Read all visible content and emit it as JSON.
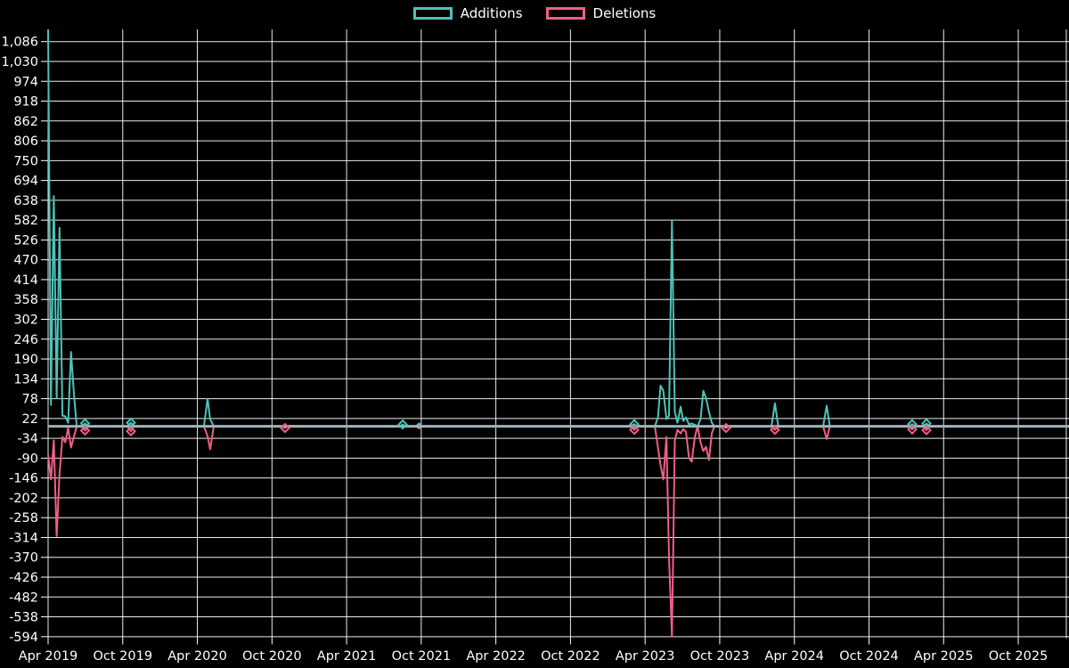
{
  "legend": {
    "additions": "Additions",
    "deletions": "Deletions"
  },
  "colors": {
    "background": "#000000",
    "additions": "#4cc3b9",
    "deletions": "#f25f84",
    "baseline": "#9eb3bc",
    "grid": "#ffffff",
    "label": "#ffffff"
  },
  "chart_data": {
    "type": "line",
    "title": "",
    "xlabel": "",
    "ylabel": "",
    "legend_position": "top-center",
    "grid": true,
    "x_axis": {
      "labels": [
        "Apr 2019",
        "Oct 2019",
        "Apr 2020",
        "Oct 2020",
        "Apr 2021",
        "Oct 2021",
        "Apr 2022",
        "Oct 2022",
        "Apr 2023",
        "Oct 2023",
        "Apr 2024",
        "Oct 2024",
        "Apr 2025",
        "Oct 2025"
      ],
      "months_between_ticks": 6
    },
    "y_axis": {
      "tick_labels": [
        "1,086",
        "1,030",
        "974",
        "918",
        "862",
        "806",
        "750",
        "694",
        "638",
        "582",
        "526",
        "470",
        "414",
        "358",
        "302",
        "246",
        "190",
        "134",
        "78",
        "22",
        "-34",
        "-90",
        "-146",
        "-202",
        "-258",
        "-314",
        "-370",
        "-426",
        "-482",
        "-538",
        "-594"
      ],
      "tick_values": [
        1086,
        1030,
        974,
        918,
        862,
        806,
        750,
        694,
        638,
        582,
        526,
        470,
        414,
        358,
        302,
        246,
        190,
        134,
        78,
        22,
        -34,
        -90,
        -146,
        -202,
        -258,
        -314,
        -370,
        -426,
        -482,
        -538,
        -594
      ],
      "step": 56,
      "range": [
        -600,
        1120
      ]
    },
    "series_meta": [
      {
        "key": "a",
        "name": "Additions",
        "color": "#4cc3b9"
      },
      {
        "key": "d",
        "name": "Deletions",
        "color": "#f25f84"
      }
    ],
    "x_unit": "months since Apr 2019 (weekly samples)",
    "points": [
      [
        0,
        1120,
        -80
      ],
      [
        0.23,
        60,
        -150
      ],
      [
        0.46,
        650,
        -40
      ],
      [
        0.69,
        80,
        -310
      ],
      [
        0.92,
        560,
        -135
      ],
      [
        1.15,
        30,
        -30
      ],
      [
        1.38,
        28,
        -45
      ],
      [
        1.61,
        10,
        -5
      ],
      [
        1.84,
        210,
        -60
      ],
      [
        2.07,
        95,
        -30
      ],
      [
        2.3,
        0,
        0
      ],
      [
        2.72,
        0,
        0
      ],
      [
        2.97,
        8,
        -12
      ],
      [
        3.22,
        0,
        0
      ],
      [
        6.37,
        0,
        0
      ],
      [
        6.66,
        10,
        -14
      ],
      [
        6.88,
        0,
        0
      ],
      [
        12.53,
        0,
        0
      ],
      [
        12.82,
        78,
        -28
      ],
      [
        13.03,
        20,
        -65
      ],
      [
        13.32,
        0,
        0
      ],
      [
        18.84,
        0,
        0
      ],
      [
        19.05,
        3,
        -5
      ],
      [
        19.27,
        0,
        0
      ],
      [
        28.29,
        0,
        0
      ],
      [
        28.51,
        5,
        0
      ],
      [
        28.72,
        0,
        0
      ],
      [
        29.58,
        0,
        0
      ],
      [
        29.83,
        8,
        -6
      ],
      [
        30.08,
        0,
        0
      ],
      [
        46.84,
        0,
        0
      ],
      [
        47.13,
        6,
        -10
      ],
      [
        47.34,
        0,
        0
      ],
      [
        48.78,
        0,
        0
      ],
      [
        49.03,
        25,
        -60
      ],
      [
        49.24,
        115,
        -110
      ],
      [
        49.46,
        100,
        -150
      ],
      [
        49.71,
        20,
        -30
      ],
      [
        49.92,
        30,
        -370
      ],
      [
        50.16,
        580,
        -594
      ],
      [
        50.39,
        40,
        -40
      ],
      [
        50.6,
        10,
        -10
      ],
      [
        50.85,
        55,
        -20
      ],
      [
        51.07,
        15,
        -8
      ],
      [
        51.28,
        25,
        -15
      ],
      [
        51.53,
        5,
        -90
      ],
      [
        51.75,
        8,
        -100
      ],
      [
        52.0,
        4,
        -30
      ],
      [
        52.21,
        0,
        0
      ],
      [
        52.46,
        20,
        -45
      ],
      [
        52.68,
        100,
        -70
      ],
      [
        52.89,
        80,
        -58
      ],
      [
        53.14,
        40,
        -95
      ],
      [
        53.36,
        10,
        -20
      ],
      [
        53.57,
        0,
        0
      ],
      [
        54.29,
        0,
        0
      ],
      [
        54.51,
        0,
        -5
      ],
      [
        54.72,
        0,
        0
      ],
      [
        58.16,
        0,
        0
      ],
      [
        58.44,
        65,
        -10
      ],
      [
        58.7,
        0,
        0
      ],
      [
        62.31,
        0,
        0
      ],
      [
        62.6,
        58,
        -36
      ],
      [
        62.85,
        0,
        0
      ],
      [
        69.26,
        0,
        0
      ],
      [
        69.47,
        6,
        -9
      ],
      [
        69.69,
        0,
        0
      ],
      [
        70.4,
        0,
        0
      ],
      [
        70.62,
        8,
        -11
      ],
      [
        70.83,
        0,
        0
      ],
      [
        81.9,
        0,
        0
      ]
    ],
    "markers": [
      {
        "m": 2.97,
        "series": "a",
        "v": 8
      },
      {
        "m": 2.97,
        "series": "d",
        "v": -12
      },
      {
        "m": 6.66,
        "series": "a",
        "v": 10
      },
      {
        "m": 6.66,
        "series": "d",
        "v": -14
      },
      {
        "m": 19.05,
        "series": "d",
        "v": -5
      },
      {
        "m": 28.51,
        "series": "a",
        "v": 5
      },
      {
        "m": 47.13,
        "series": "a",
        "v": 6
      },
      {
        "m": 47.13,
        "series": "d",
        "v": -10
      },
      {
        "m": 54.51,
        "series": "d",
        "v": -5
      },
      {
        "m": 58.44,
        "series": "d",
        "v": -10
      },
      {
        "m": 69.47,
        "series": "a",
        "v": 6
      },
      {
        "m": 69.47,
        "series": "d",
        "v": -9
      },
      {
        "m": 70.62,
        "series": "a",
        "v": 8
      },
      {
        "m": 70.62,
        "series": "d",
        "v": -11
      }
    ]
  }
}
